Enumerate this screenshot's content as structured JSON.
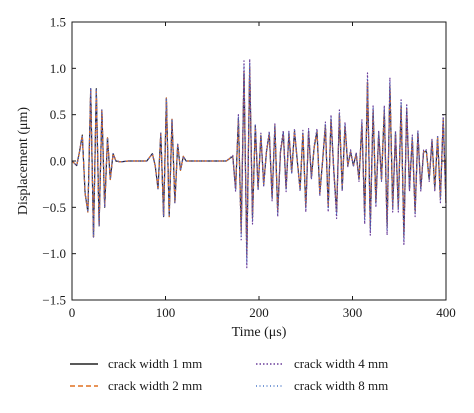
{
  "chart_data": {
    "type": "line",
    "xlabel": "Time (μs)",
    "ylabel": "Displacement (μm)",
    "xlim": [
      0,
      400
    ],
    "ylim": [
      -1.5,
      1.5
    ],
    "xticks": [
      0,
      100,
      200,
      300,
      400
    ],
    "yticks": [
      1.5,
      1.0,
      0.5,
      0.0,
      -0.5,
      -1.0,
      -1.5
    ],
    "xtick_labels": [
      "0",
      "100",
      "200",
      "300",
      "400"
    ],
    "ytick_labels": [
      "1.5",
      "1.0",
      "0.5",
      "0.0",
      "−0.5",
      "−1.0",
      "−1.5"
    ],
    "grid": false,
    "legend_position": "bottom",
    "series_style": [
      {
        "color": "#222222",
        "dash": "none",
        "width": 1.2
      },
      {
        "color": "#e07020",
        "dash": "5,3",
        "width": 1.2
      },
      {
        "color": "#6a3d9a",
        "dash": "1.5,2",
        "width": 1.2
      },
      {
        "color": "#4a78c8",
        "dash": "1,2.5",
        "width": 1.0
      }
    ],
    "series": [
      {
        "name": "crack width 1 mm",
        "x": [
          0,
          5,
          8,
          11,
          14,
          17,
          20,
          23,
          26,
          29,
          32,
          35,
          38,
          41,
          44,
          47,
          52,
          60,
          70,
          80,
          86,
          89,
          92,
          95,
          98,
          101,
          104,
          107,
          110,
          113,
          116,
          119,
          122,
          126,
          135,
          150,
          165,
          172,
          175,
          178,
          181,
          184,
          187,
          190,
          193,
          196,
          199,
          202,
          205,
          208,
          211,
          214,
          217,
          220,
          223,
          226,
          229,
          232,
          235,
          238,
          241,
          244,
          247,
          250,
          253,
          256,
          259,
          262,
          265,
          268,
          271,
          274,
          277,
          280,
          283,
          286,
          289,
          292,
          295,
          298,
          301,
          304,
          307,
          310,
          313,
          316,
          319,
          322,
          325,
          328,
          331,
          334,
          337,
          340,
          343,
          346,
          349,
          352,
          355,
          358,
          361,
          364,
          367,
          370,
          373,
          376,
          379,
          382,
          385,
          388,
          391,
          394,
          397,
          400
        ],
        "y": [
          0.0,
          -0.05,
          0.1,
          0.28,
          -0.35,
          -0.55,
          0.78,
          -0.82,
          0.78,
          -0.7,
          0.55,
          -0.5,
          0.25,
          -0.2,
          0.08,
          0.0,
          -0.01,
          0.0,
          0.0,
          0.0,
          0.08,
          -0.05,
          -0.3,
          0.3,
          -0.6,
          0.68,
          -0.6,
          0.45,
          -0.45,
          0.18,
          -0.1,
          0.05,
          0.0,
          0.0,
          0.0,
          0.0,
          0.0,
          0.05,
          -0.3,
          0.45,
          -0.75,
          0.95,
          -1.0,
          1.0,
          -0.6,
          0.38,
          -0.3,
          0.28,
          -0.25,
          0.1,
          0.3,
          -0.4,
          0.38,
          -0.55,
          0.1,
          0.3,
          -0.3,
          0.3,
          -0.12,
          0.32,
          0.0,
          -0.3,
          0.3,
          -0.5,
          0.32,
          -0.18,
          0.15,
          0.32,
          -0.35,
          0.0,
          0.38,
          -0.5,
          0.45,
          -0.1,
          -0.55,
          0.5,
          -0.3,
          0.38,
          -0.05,
          0.1,
          -0.05,
          0.08,
          -0.2,
          0.4,
          -0.6,
          0.85,
          -0.7,
          0.55,
          -0.45,
          0.3,
          -0.2,
          0.55,
          -0.7,
          0.8,
          -0.5,
          0.3,
          -0.5,
          0.6,
          -0.8,
          0.55,
          -0.3,
          0.25,
          -0.55,
          0.3,
          -0.3,
          0.1,
          0.1,
          -0.2,
          0.22,
          -0.3,
          0.25,
          -0.4,
          0.45,
          -0.45
        ]
      },
      {
        "name": "crack width 2 mm",
        "x": [
          0,
          5,
          8,
          11,
          14,
          17,
          20,
          23,
          26,
          29,
          32,
          35,
          38,
          41,
          44,
          47,
          52,
          60,
          70,
          80,
          86,
          89,
          92,
          95,
          98,
          101,
          104,
          107,
          110,
          113,
          116,
          119,
          122,
          126,
          135,
          150,
          165,
          172,
          175,
          178,
          181,
          184,
          187,
          190,
          193,
          196,
          199,
          202,
          205,
          208,
          211,
          214,
          217,
          220,
          223,
          226,
          229,
          232,
          235,
          238,
          241,
          244,
          247,
          250,
          253,
          256,
          259,
          262,
          265,
          268,
          271,
          274,
          277,
          280,
          283,
          286,
          289,
          292,
          295,
          298,
          301,
          304,
          307,
          310,
          313,
          316,
          319,
          322,
          325,
          328,
          331,
          334,
          337,
          340,
          343,
          346,
          349,
          352,
          355,
          358,
          361,
          364,
          367,
          370,
          373,
          376,
          379,
          382,
          385,
          388,
          391,
          394,
          397,
          400
        ],
        "y": [
          0.0,
          -0.05,
          0.1,
          0.28,
          -0.35,
          -0.55,
          0.78,
          -0.82,
          0.78,
          -0.7,
          0.55,
          -0.5,
          0.25,
          -0.2,
          0.08,
          0.0,
          -0.01,
          0.0,
          0.0,
          0.0,
          0.08,
          -0.05,
          -0.3,
          0.3,
          -0.6,
          0.68,
          -0.6,
          0.45,
          -0.45,
          0.18,
          -0.1,
          0.05,
          0.0,
          0.0,
          0.0,
          0.0,
          0.0,
          0.05,
          -0.3,
          0.45,
          -0.78,
          0.97,
          -1.03,
          1.02,
          -0.62,
          0.38,
          -0.3,
          0.28,
          -0.25,
          0.1,
          0.3,
          -0.4,
          0.38,
          -0.55,
          0.1,
          0.3,
          -0.3,
          0.3,
          -0.12,
          0.32,
          0.0,
          -0.3,
          0.3,
          -0.5,
          0.32,
          -0.18,
          0.15,
          0.32,
          -0.35,
          0.0,
          0.38,
          -0.5,
          0.45,
          -0.1,
          -0.55,
          0.5,
          -0.3,
          0.38,
          -0.05,
          0.1,
          -0.05,
          0.08,
          -0.2,
          0.4,
          -0.62,
          0.86,
          -0.72,
          0.55,
          -0.45,
          0.3,
          -0.2,
          0.55,
          -0.72,
          0.82,
          -0.5,
          0.3,
          -0.5,
          0.6,
          -0.82,
          0.56,
          -0.3,
          0.25,
          -0.55,
          0.3,
          -0.3,
          0.1,
          0.1,
          -0.2,
          0.22,
          -0.3,
          0.25,
          -0.4,
          0.46,
          -0.46
        ]
      },
      {
        "name": "crack width 4 mm",
        "x": [
          0,
          5,
          8,
          11,
          14,
          17,
          20,
          23,
          26,
          29,
          32,
          35,
          38,
          41,
          44,
          47,
          52,
          60,
          70,
          80,
          86,
          89,
          92,
          95,
          98,
          101,
          104,
          107,
          110,
          113,
          116,
          119,
          122,
          126,
          135,
          150,
          165,
          172,
          175,
          178,
          181,
          184,
          187,
          190,
          193,
          196,
          199,
          202,
          205,
          208,
          211,
          214,
          217,
          220,
          223,
          226,
          229,
          232,
          235,
          238,
          241,
          244,
          247,
          250,
          253,
          256,
          259,
          262,
          265,
          268,
          271,
          274,
          277,
          280,
          283,
          286,
          289,
          292,
          295,
          298,
          301,
          304,
          307,
          310,
          313,
          316,
          319,
          322,
          325,
          328,
          331,
          334,
          337,
          340,
          343,
          346,
          349,
          352,
          355,
          358,
          361,
          364,
          367,
          370,
          373,
          376,
          379,
          382,
          385,
          388,
          391,
          394,
          397,
          400
        ],
        "y": [
          0.0,
          -0.05,
          0.1,
          0.28,
          -0.35,
          -0.55,
          0.78,
          -0.82,
          0.78,
          -0.7,
          0.55,
          -0.5,
          0.25,
          -0.2,
          0.08,
          0.0,
          -0.01,
          0.0,
          0.0,
          0.0,
          0.08,
          -0.05,
          -0.3,
          0.3,
          -0.6,
          0.68,
          -0.6,
          0.45,
          -0.45,
          0.18,
          -0.1,
          0.05,
          0.0,
          0.0,
          0.0,
          0.0,
          0.0,
          0.06,
          -0.33,
          0.5,
          -0.85,
          1.08,
          -1.15,
          1.1,
          -0.68,
          0.4,
          -0.32,
          0.3,
          -0.28,
          0.12,
          0.32,
          -0.43,
          0.4,
          -0.6,
          0.12,
          0.33,
          -0.33,
          0.32,
          -0.14,
          0.35,
          0.0,
          -0.33,
          0.33,
          -0.55,
          0.35,
          -0.2,
          0.17,
          0.35,
          -0.38,
          0.0,
          0.42,
          -0.55,
          0.5,
          -0.12,
          -0.62,
          0.55,
          -0.33,
          0.42,
          -0.06,
          0.12,
          -0.06,
          0.09,
          -0.22,
          0.45,
          -0.68,
          0.95,
          -0.8,
          0.6,
          -0.5,
          0.33,
          -0.22,
          0.6,
          -0.8,
          0.9,
          -0.55,
          0.33,
          -0.55,
          0.66,
          -0.9,
          0.62,
          -0.33,
          0.28,
          -0.6,
          0.33,
          -0.33,
          0.12,
          0.12,
          -0.22,
          0.24,
          -0.33,
          0.28,
          -0.45,
          0.5,
          -0.5
        ]
      },
      {
        "name": "crack width 8 mm",
        "x": [
          0,
          5,
          8,
          11,
          14,
          17,
          20,
          23,
          26,
          29,
          32,
          35,
          38,
          41,
          44,
          47,
          52,
          60,
          70,
          80,
          86,
          89,
          92,
          95,
          98,
          101,
          104,
          107,
          110,
          113,
          116,
          119,
          122,
          126,
          135,
          150,
          165,
          172,
          175,
          178,
          181,
          184,
          187,
          190,
          193,
          196,
          199,
          202,
          205,
          208,
          211,
          214,
          217,
          220,
          223,
          226,
          229,
          232,
          235,
          238,
          241,
          244,
          247,
          250,
          253,
          256,
          259,
          262,
          265,
          268,
          271,
          274,
          277,
          280,
          283,
          286,
          289,
          292,
          295,
          298,
          301,
          304,
          307,
          310,
          313,
          316,
          319,
          322,
          325,
          328,
          331,
          334,
          337,
          340,
          343,
          346,
          349,
          352,
          355,
          358,
          361,
          364,
          367,
          370,
          373,
          376,
          379,
          382,
          385,
          388,
          391,
          394,
          397,
          400
        ],
        "y": [
          0.0,
          -0.05,
          0.1,
          0.28,
          -0.35,
          -0.55,
          0.78,
          -0.82,
          0.78,
          -0.7,
          0.55,
          -0.5,
          0.25,
          -0.2,
          0.08,
          0.0,
          -0.01,
          0.0,
          0.0,
          0.0,
          0.08,
          -0.05,
          -0.3,
          0.3,
          -0.6,
          0.68,
          -0.6,
          0.45,
          -0.45,
          0.18,
          -0.1,
          0.05,
          0.0,
          0.0,
          0.0,
          0.0,
          0.0,
          0.05,
          -0.32,
          0.48,
          -0.82,
          1.04,
          -1.1,
          1.06,
          -0.65,
          0.39,
          -0.31,
          0.29,
          -0.26,
          0.11,
          0.31,
          -0.41,
          0.39,
          -0.57,
          0.11,
          0.31,
          -0.31,
          0.31,
          -0.13,
          0.33,
          0.0,
          -0.31,
          0.31,
          -0.52,
          0.33,
          -0.19,
          0.16,
          0.33,
          -0.36,
          0.0,
          0.4,
          -0.52,
          0.47,
          -0.11,
          -0.58,
          0.52,
          -0.31,
          0.4,
          -0.05,
          0.11,
          -0.05,
          0.08,
          -0.21,
          0.42,
          -0.65,
          0.9,
          -0.75,
          0.57,
          -0.47,
          0.31,
          -0.21,
          0.57,
          -0.75,
          0.85,
          -0.52,
          0.31,
          -0.52,
          0.63,
          -0.85,
          0.58,
          -0.31,
          0.26,
          -0.57,
          0.31,
          -0.31,
          0.11,
          0.11,
          -0.21,
          0.23,
          -0.31,
          0.26,
          -0.42,
          0.47,
          -0.47
        ]
      }
    ]
  }
}
